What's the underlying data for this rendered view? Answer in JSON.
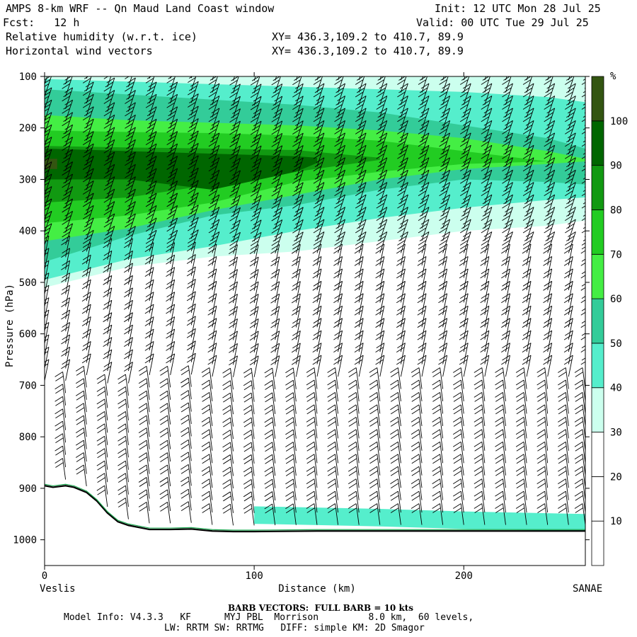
{
  "header": {
    "title": "AMPS 8-km WRF -- Qn Maud Land Coast window",
    "init": "Init: 12 UTC Mon 28 Jul 25",
    "fcst": "Fcst:   12 h",
    "valid": "Valid: 00 UTC Tue 29 Jul 25",
    "field1": "Relative humidity (w.r.t. ice)",
    "field1_xy": "XY= 436.3,109.2 to 410.7, 89.9",
    "field2": "Horizontal wind vectors",
    "field2_xy": "XY= 436.3,109.2 to 410.7, 89.9"
  },
  "footer": {
    "barb_note": "BARB VECTORS:  FULL BARB = 10 kts",
    "model_line1": "Model Info: V4.3.3   KF      MYJ PBL  Morrison         8.0 km,  60 levels,",
    "model_line2": "LW: RRTM SW: RRTMG   DIFF: simple KM: 2D Smagor"
  },
  "chart_data": {
    "type": "heatmap",
    "subtype": "vertical cross-section",
    "xlabel": "Distance (km)",
    "ylabel": "Pressure (hPa)",
    "x_start_label": "Veslis",
    "x_end_label": "SANAE",
    "xlim": [
      0,
      258
    ],
    "ylim": [
      100,
      1050
    ],
    "y_scale": "linear, inverted",
    "x_ticks": [
      0,
      100,
      200
    ],
    "y_ticks": [
      100,
      200,
      300,
      400,
      500,
      600,
      700,
      800,
      900,
      1000
    ],
    "colorbar": {
      "unit": "%",
      "levels": [
        10,
        20,
        30,
        40,
        50,
        60,
        70,
        80,
        90,
        100
      ],
      "colors": [
        "#ffffff",
        "#ffffff",
        "#ffffff",
        "#ccffee",
        "#55eecc",
        "#33cc99",
        "#44ee44",
        "#22cc22",
        "#119911",
        "#006600",
        "#335511"
      ]
    },
    "rh_layers": [
      {
        "range": "30-40",
        "x": [
          0,
          40,
          80,
          120,
          160,
          200,
          240,
          258
        ],
        "top": [
          100,
          100,
          100,
          100,
          100,
          100,
          100,
          100
        ],
        "bottom": [
          510,
          470,
          450,
          440,
          420,
          400,
          390,
          380
        ]
      },
      {
        "range": "40-50",
        "x": [
          0,
          40,
          80,
          120,
          160,
          200,
          240,
          258
        ],
        "top": [
          105,
          110,
          115,
          120,
          125,
          130,
          140,
          150
        ],
        "bottom": [
          495,
          455,
          430,
          400,
          375,
          355,
          340,
          335
        ]
      },
      {
        "range": "50-60",
        "x": [
          0,
          40,
          80,
          120,
          160,
          200,
          240,
          258
        ],
        "top": [
          125,
          135,
          145,
          155,
          170,
          195,
          220,
          240
        ],
        "bottom": [
          460,
          410,
          370,
          350,
          320,
          300,
          305,
          310
        ]
      },
      {
        "range": "60-70",
        "x": [
          0,
          40,
          80,
          120,
          160,
          200,
          240,
          258
        ],
        "top": [
          175,
          185,
          190,
          195,
          205,
          220,
          245,
          260
        ],
        "bottom": [
          420,
          395,
          360,
          330,
          300,
          280,
          270,
          265
        ]
      },
      {
        "range": "70-80",
        "x": [
          0,
          40,
          80,
          120,
          160,
          200,
          240
        ],
        "top": [
          205,
          208,
          210,
          215,
          225,
          245,
          265
        ],
        "bottom": [
          385,
          370,
          345,
          305,
          285,
          270,
          265
        ]
      },
      {
        "range": "80-90",
        "x": [
          0,
          40,
          80,
          120,
          160
        ],
        "top": [
          235,
          238,
          240,
          243,
          258
        ],
        "bottom": [
          345,
          335,
          310,
          285,
          262
        ]
      },
      {
        "range": "90-100",
        "x": [
          0,
          40,
          80,
          120,
          130
        ],
        "top": [
          240,
          245,
          250,
          255,
          258
        ],
        "bottom": [
          300,
          300,
          320,
          285,
          268
        ]
      },
      {
        "range": ">100",
        "x": [
          0,
          6
        ],
        "top": [
          260,
          260
        ],
        "bottom": [
          280,
          280
        ]
      }
    ],
    "terrain": {
      "x": [
        0,
        4,
        10,
        14,
        20,
        25,
        30,
        35,
        40,
        50,
        60,
        70,
        80,
        90,
        100,
        130,
        160,
        200,
        258
      ],
      "p": [
        895,
        898,
        895,
        898,
        908,
        925,
        948,
        965,
        972,
        980,
        980,
        979,
        983,
        984,
        984,
        983,
        983,
        983,
        983
      ]
    },
    "surface_moist_band": {
      "range": "30-50",
      "x": [
        100,
        160,
        200,
        258
      ],
      "p": [
        955,
        960,
        965,
        970
      ]
    },
    "wind_barbs": {
      "columns_x_km": [
        0,
        10,
        20,
        30,
        40,
        50,
        60,
        70,
        80,
        90,
        100,
        110,
        120,
        130,
        140,
        150,
        160,
        170,
        180,
        190,
        200,
        210,
        220,
        230,
        240,
        250,
        258
      ],
      "description": "Barbs on every column, shown from the level just above the terrain up to 100 hPa",
      "full_barb_kts": 10
    }
  }
}
